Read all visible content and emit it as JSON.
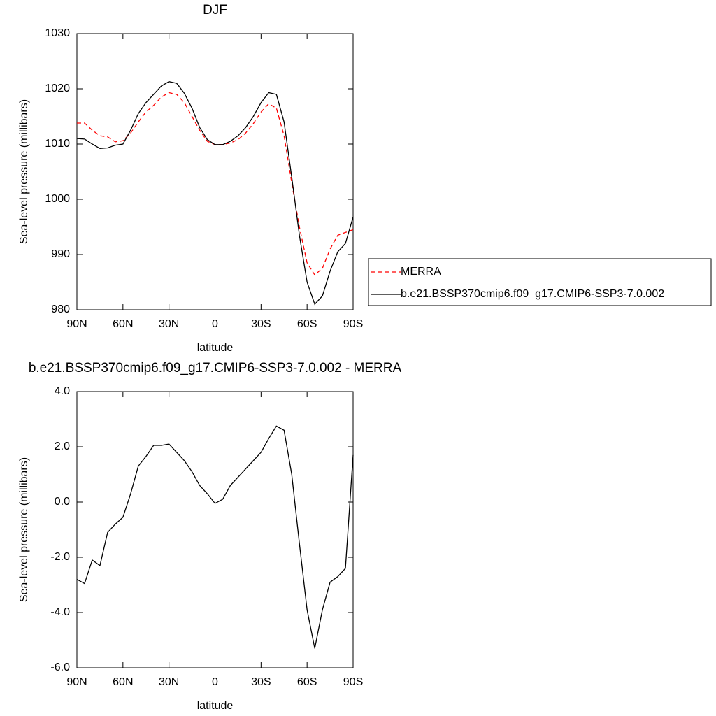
{
  "chart_data": [
    {
      "type": "line",
      "title": "DJF",
      "x_label": "latitude",
      "y_label": "Sea-level pressure (millibars)",
      "x": [
        90,
        85,
        80,
        75,
        70,
        65,
        60,
        55,
        50,
        45,
        40,
        35,
        30,
        25,
        20,
        15,
        10,
        5,
        0,
        -5,
        -10,
        -15,
        -20,
        -25,
        -30,
        -35,
        -40,
        -45,
        -50,
        -55,
        -60,
        -65,
        -70,
        -75,
        -80,
        -85,
        -90
      ],
      "series": [
        {
          "name": "MERRA",
          "color": "#ff0000",
          "dash": "dashed",
          "values": [
            1013.8,
            1013.8,
            1012.5,
            1011.5,
            1011.3,
            1010.4,
            1010.6,
            1012,
            1014,
            1015.8,
            1017,
            1018.5,
            1019.3,
            1019,
            1017.5,
            1015,
            1012.5,
            1010.5,
            1009.9,
            1009.9,
            1010.2,
            1010.8,
            1012,
            1013.7,
            1015.8,
            1017.3,
            1016.5,
            1011.5,
            1003,
            995,
            988.5,
            986.3,
            987.5,
            991,
            993.5,
            994,
            994.5
          ]
        },
        {
          "name": "b.e21.BSSP370cmip6.f09_g17.CMIP6-SSP3-7.0.002",
          "color": "#000000",
          "dash": "solid",
          "values": [
            1011,
            1010.9,
            1010,
            1009.2,
            1009.3,
            1009.8,
            1010,
            1012.5,
            1015.5,
            1017.5,
            1019,
            1020.5,
            1021.3,
            1021,
            1019.2,
            1016.5,
            1013,
            1010.8,
            1009.9,
            1009.9,
            1010.5,
            1011.5,
            1013,
            1015,
            1017.5,
            1019.3,
            1019,
            1014,
            1004,
            993.5,
            985,
            981,
            982.5,
            987,
            990.5,
            992,
            996.8
          ]
        }
      ],
      "xlim": [
        90,
        -90
      ],
      "xticks": [
        {
          "value": 90,
          "label": "90N"
        },
        {
          "value": 60,
          "label": "60N"
        },
        {
          "value": 30,
          "label": "30N"
        },
        0,
        {
          "value": -30,
          "label": "30S"
        },
        {
          "value": -60,
          "label": "60S"
        },
        {
          "value": -90,
          "label": "90S"
        }
      ],
      "ylim": [
        980,
        1030
      ],
      "yticks": [
        980,
        990,
        1000,
        1010,
        1020,
        1030
      ],
      "legend": "right"
    },
    {
      "type": "line",
      "title": "b.e21.BSSP370cmip6.f09_g17.CMIP6-SSP3-7.0.002 - MERRA",
      "x_label": "latitude",
      "y_label": "Sea-level pressure (millibars)",
      "x": [
        90,
        85,
        80,
        75,
        70,
        65,
        60,
        55,
        50,
        45,
        40,
        35,
        30,
        25,
        20,
        15,
        10,
        5,
        0,
        -5,
        -10,
        -15,
        -20,
        -25,
        -30,
        -35,
        -40,
        -45,
        -50,
        -55,
        -60,
        -65,
        -70,
        -75,
        -80,
        -85,
        -90
      ],
      "series": [
        {
          "color": "#000000",
          "dash": "solid",
          "values": [
            -2.8,
            -2.95,
            -2.1,
            -2.3,
            -1.1,
            -0.8,
            -0.55,
            0.3,
            1.3,
            1.65,
            2.05,
            2.05,
            2.1,
            1.8,
            1.5,
            1.1,
            0.6,
            0.3,
            -0.05,
            0.1,
            0.6,
            0.9,
            1.2,
            1.5,
            1.8,
            2.3,
            2.75,
            2.6,
            1,
            -1.5,
            -3.9,
            -5.3,
            -3.9,
            -2.9,
            -2.7,
            -2.4,
            1.7
          ]
        }
      ],
      "xlim": [
        90,
        -90
      ],
      "xticks": [
        {
          "value": 90,
          "label": "90N"
        },
        {
          "value": 60,
          "label": "60N"
        },
        {
          "value": 30,
          "label": "30N"
        },
        0,
        {
          "value": -30,
          "label": "30S"
        },
        {
          "value": -60,
          "label": "60S"
        },
        {
          "value": -90,
          "label": "90S"
        }
      ],
      "ylim": [
        -6,
        4
      ],
      "yticks": [
        {
          "value": -6,
          "label": "-6.0"
        },
        {
          "value": -4,
          "label": "-4.0"
        },
        {
          "value": -2,
          "label": "-2.0"
        },
        {
          "value": 0,
          "label": "0.0"
        },
        {
          "value": 2,
          "label": "2.0"
        },
        {
          "value": 4,
          "label": "4.0"
        }
      ]
    }
  ]
}
